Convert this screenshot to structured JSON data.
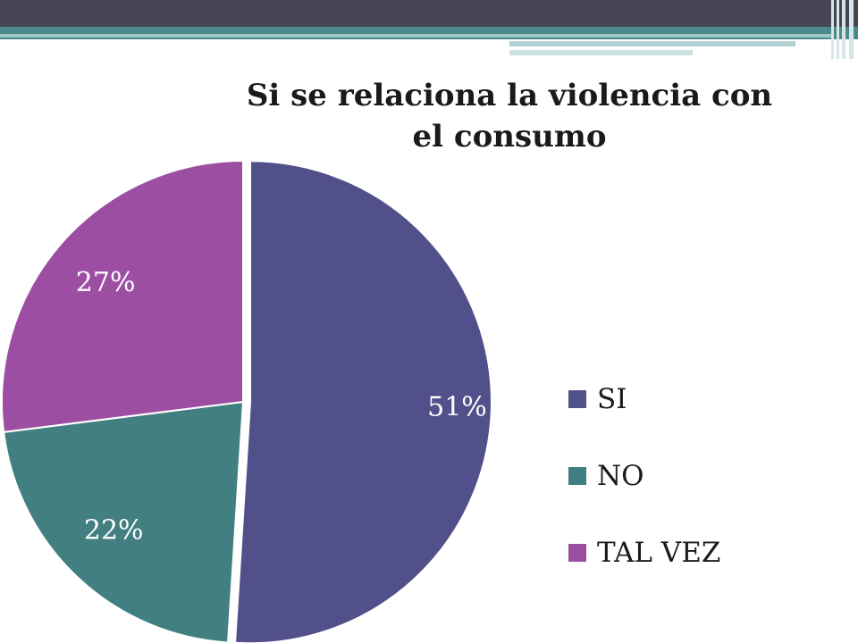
{
  "chart_data": {
    "type": "pie",
    "title": "Si se relaciona la violencia con el consumo",
    "title_lines": [
      "Si se relaciona la violencia con",
      "el consumo"
    ],
    "categories": [
      "SI",
      "NO",
      "TAL VEZ"
    ],
    "values": [
      51,
      22,
      27
    ],
    "data_labels": [
      "51%",
      "22%",
      "27%"
    ],
    "colors": [
      "#52508a",
      "#417f80",
      "#9c4fa2"
    ],
    "exploded_slice": "SI",
    "legend_position": "right"
  },
  "decoration": {
    "top_bar_color": "#454553",
    "accent_color": "#4a8a8d"
  }
}
